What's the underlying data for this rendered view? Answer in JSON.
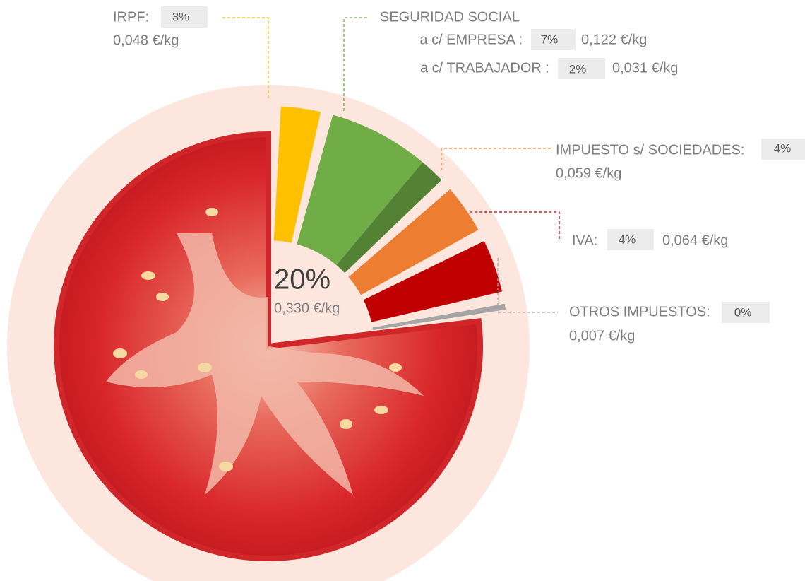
{
  "chart_data": {
    "type": "radial-bar",
    "total": {
      "percent": 20,
      "percent_label": "20%",
      "amount": 0.33,
      "amount_label": "0,330 €/kg"
    },
    "irpf": {
      "label": "IRPF:",
      "percent": 3,
      "percent_label": "3%",
      "amount": 0.048,
      "amount_label": "0,048 €/kg",
      "color": "#ffc000"
    },
    "seguridad_social": {
      "title": "SEGURIDAD SOCIAL",
      "parts": [
        {
          "label": "a c/ EMPRESA :",
          "percent": 7,
          "percent_label": "7%",
          "amount": 0.122,
          "amount_label": "0,122 €/kg",
          "color": "#70ad47"
        },
        {
          "label": "a c/ TRABAJADOR :",
          "percent": 2,
          "percent_label": "2%",
          "amount": 0.031,
          "amount_label": "0,031 €/kg",
          "color": "#548235"
        }
      ]
    },
    "sociedades": {
      "label": "IMPUESTO s/ SOCIEDADES:",
      "percent": 4,
      "percent_label": "4%",
      "amount": 0.059,
      "amount_label": "0,059 €/kg",
      "color": "#ed7d31"
    },
    "iva": {
      "label": "IVA:",
      "percent": 4,
      "percent_label": "4%",
      "amount": 0.064,
      "amount_label": "0,064 €/kg",
      "color": "#c00000"
    },
    "otros": {
      "label": "OTROS IMPUESTOS:",
      "percent": 0,
      "percent_label": "0%",
      "amount": 0.007,
      "amount_label": "0,007 €/kg",
      "color": "#a5a5a5"
    }
  }
}
